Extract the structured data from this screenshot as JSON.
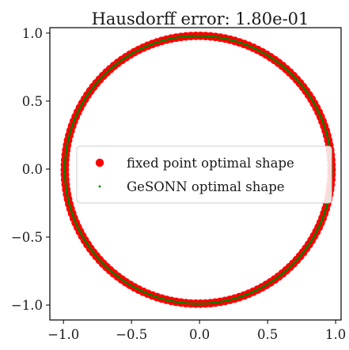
{
  "chart_data": {
    "type": "scatter",
    "title": "Hausdorff error: 1.80e-01",
    "xlabel": "",
    "ylabel": "",
    "xlim": [
      -1.1,
      1.04
    ],
    "ylim": [
      -1.11,
      1.04
    ],
    "x_ticks": [
      -1.0,
      -0.5,
      0.0,
      0.5,
      1.0
    ],
    "x_tick_labels": [
      "−1.0",
      "−0.5",
      "0.0",
      "0.5",
      "1.0"
    ],
    "y_ticks": [
      -1.0,
      -0.5,
      0.0,
      0.5,
      1.0
    ],
    "y_tick_labels": [
      "−1.0",
      "−0.5",
      "0.0",
      "0.5",
      "1.0"
    ],
    "grid": false,
    "legend_position": "center",
    "series": [
      {
        "name": "fixed point optimal shape",
        "color": "#ff0000",
        "marker": "large-dot",
        "shape": "ellipse",
        "center": [
          -0.01,
          -0.005
        ],
        "radii": [
          0.98,
          0.985
        ],
        "num_points": 170
      },
      {
        "name": "GeSONN optimal shape",
        "color": "#008000",
        "marker": "small-dot",
        "shape": "ellipse",
        "center": [
          -0.01,
          -0.005
        ],
        "radii": [
          0.98,
          0.985
        ],
        "num_points": 600
      }
    ]
  }
}
